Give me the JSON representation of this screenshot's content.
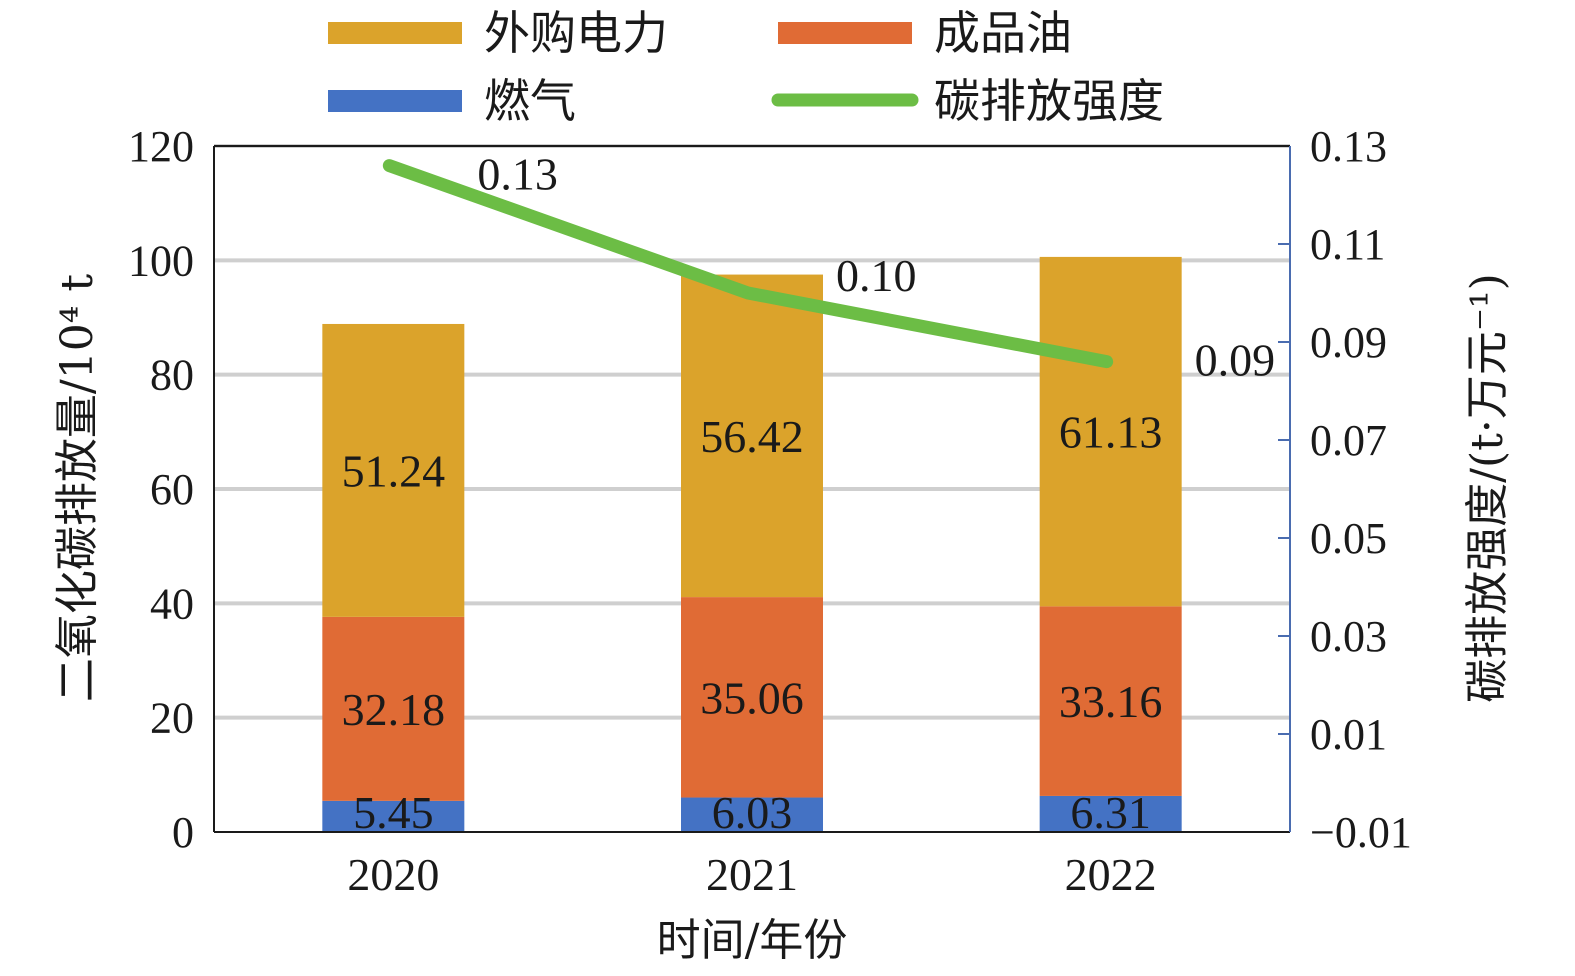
{
  "chart_data": {
    "type": "bar",
    "stacked": true,
    "categories": [
      "2020",
      "2021",
      "2022"
    ],
    "xlabel": "时间/年份",
    "ylabel": "二氧化碳排放量/10⁴ t",
    "y2label": "碳排放强度/(t·万元⁻¹)",
    "ylim": [
      0,
      120
    ],
    "y2lim": [
      -0.01,
      0.13
    ],
    "yticks": [
      "0",
      "20",
      "40",
      "60",
      "80",
      "100",
      "120"
    ],
    "y2ticks": [
      "−0.01",
      "0.01",
      "0.03",
      "0.05",
      "0.07",
      "0.09",
      "0.11",
      "0.13"
    ],
    "grid": true,
    "legend_position": "top",
    "series": [
      {
        "name": "燃气",
        "values": [
          5.45,
          6.03,
          6.31
        ],
        "labels": [
          "5.45",
          "6.03",
          "6.31"
        ],
        "color": "#4472c4"
      },
      {
        "name": "成品油",
        "values": [
          32.18,
          35.06,
          33.16
        ],
        "labels": [
          "32.18",
          "35.06",
          "33.16"
        ],
        "color": "#e06b35"
      },
      {
        "name": "外购电力",
        "values": [
          51.24,
          56.42,
          61.13
        ],
        "labels": [
          "51.24",
          "56.42",
          "61.13"
        ],
        "color": "#dba32b"
      }
    ],
    "line_series": {
      "name": "碳排放强度",
      "axis": "right",
      "values": [
        0.126,
        0.1,
        0.086
      ],
      "labels": [
        "0.13",
        "0.10",
        "0.09"
      ],
      "color": "#6cbd45"
    },
    "legend": [
      {
        "label": "外购电力",
        "kind": "box",
        "color": "#dba32b"
      },
      {
        "label": "成品油",
        "kind": "box",
        "color": "#e06b35"
      },
      {
        "label": "燃气",
        "kind": "box",
        "color": "#4472c4"
      },
      {
        "label": "碳排放强度",
        "kind": "line",
        "color": "#6cbd45"
      }
    ]
  }
}
